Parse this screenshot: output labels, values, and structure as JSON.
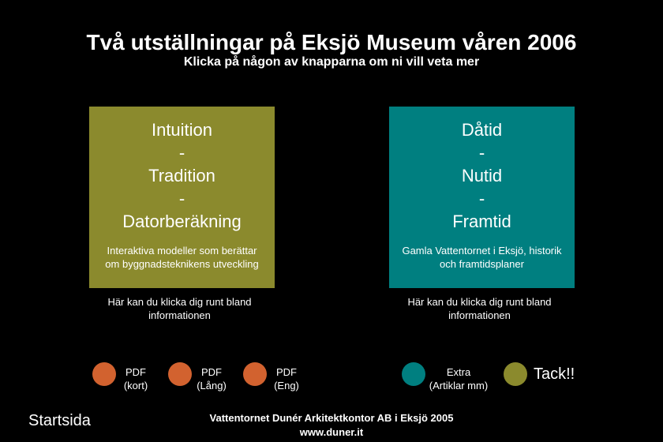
{
  "header": {
    "title": "Två utställningar på Eksjö Museum våren 2006",
    "subtitle": "Klicka på någon av knapparna om ni vill veta mer"
  },
  "panels": [
    {
      "lines": [
        "Intuition",
        "-",
        "Tradition",
        "-",
        "Datorberäkning"
      ],
      "description": [
        "Interaktiva modeller som berättar",
        "om byggnadsteknikens utveckling"
      ],
      "caption": [
        "Här kan du klicka dig runt bland",
        "informationen"
      ]
    },
    {
      "lines": [
        "Dåtid",
        "-",
        "Nutid",
        "-",
        "Framtid"
      ],
      "description": [
        "Gamla Vattentornet i Eksjö, historik",
        "och framtidsplaner"
      ],
      "caption": [
        "Här kan du klicka dig runt bland",
        "informationen"
      ]
    }
  ],
  "buttons": [
    [
      "PDF",
      "(kort)"
    ],
    [
      "PDF",
      "(Lång)"
    ],
    [
      "PDF",
      "(Eng)"
    ],
    [
      "Extra",
      "(Artiklar mm)"
    ]
  ],
  "thanks": "Tack!!",
  "start": "Startsida",
  "footer": [
    "Vattentornet Dunér Arkitektkontor AB i Eksjö 2005",
    "www.duner.it"
  ]
}
